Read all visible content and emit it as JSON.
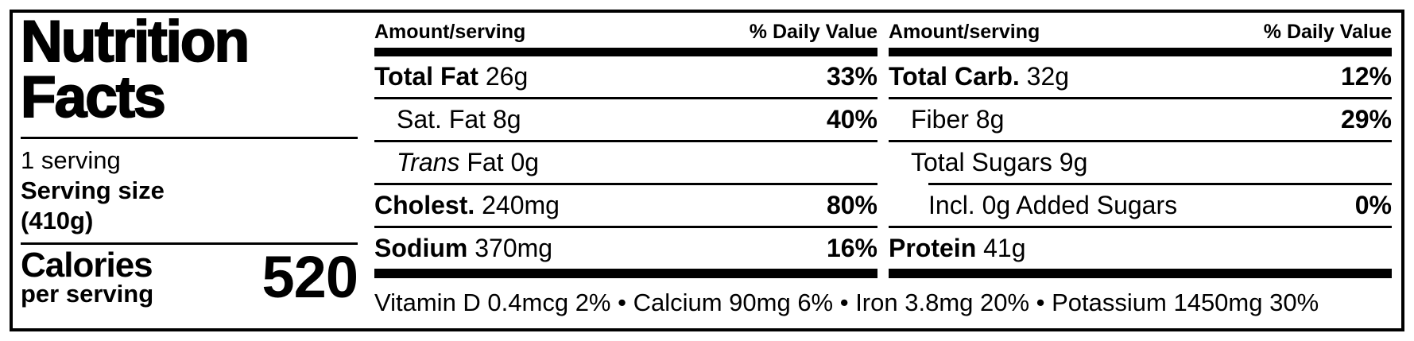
{
  "colors": {
    "text": "#000000",
    "background": "#ffffff"
  },
  "left_panel": {
    "title_line1": "Nutrition",
    "title_line2": "Facts",
    "serving_count": "1 serving",
    "serving_size_label": "Serving size",
    "serving_size_value": "(410g)",
    "calories_label": "Calories",
    "calories_sublabel": "per serving",
    "calories_value": "520"
  },
  "columns": [
    {
      "header": {
        "amount": "Amount/serving",
        "daily_value": "% Daily Value"
      },
      "rows": [
        {
          "name": "Total Fat",
          "style": "bold",
          "value": "26g",
          "dv": "33%",
          "indent": 0
        },
        {
          "name": "Sat. Fat",
          "style": "regular",
          "value": "8g",
          "dv": "40%",
          "indent": 1
        },
        {
          "name": "Trans",
          "style": "italic",
          "value": "Fat 0g",
          "dv": "",
          "indent": 1
        },
        {
          "name": "Cholest.",
          "style": "bold",
          "value": "240mg",
          "dv": "80%",
          "indent": 0
        },
        {
          "name": "Sodium",
          "style": "bold",
          "value": "370mg",
          "dv": "16%",
          "indent": 0
        }
      ]
    },
    {
      "header": {
        "amount": "Amount/serving",
        "daily_value": "% Daily Value"
      },
      "rows": [
        {
          "name": "Total Carb.",
          "style": "bold",
          "value": "32g",
          "dv": "12%",
          "indent": 0
        },
        {
          "name": "Fiber",
          "style": "regular",
          "value": "8g",
          "dv": "29%",
          "indent": 1
        },
        {
          "name": "Total Sugars",
          "style": "regular",
          "value": "9g",
          "dv": "",
          "indent": 1
        },
        {
          "name": "Incl. 0g Added Sugars",
          "style": "regular",
          "value": "",
          "dv": "0%",
          "indent": 2,
          "separator_indent": true
        },
        {
          "name": "Protein",
          "style": "bold",
          "value": "41g",
          "dv": "",
          "indent": 0
        }
      ]
    }
  ],
  "footnote": {
    "items": [
      "Vitamin D 0.4mcg 2%",
      "Calcium 90mg 6%",
      "Iron 3.8mg 20%",
      "Potassium 1450mg 30%"
    ],
    "separator": " • "
  }
}
